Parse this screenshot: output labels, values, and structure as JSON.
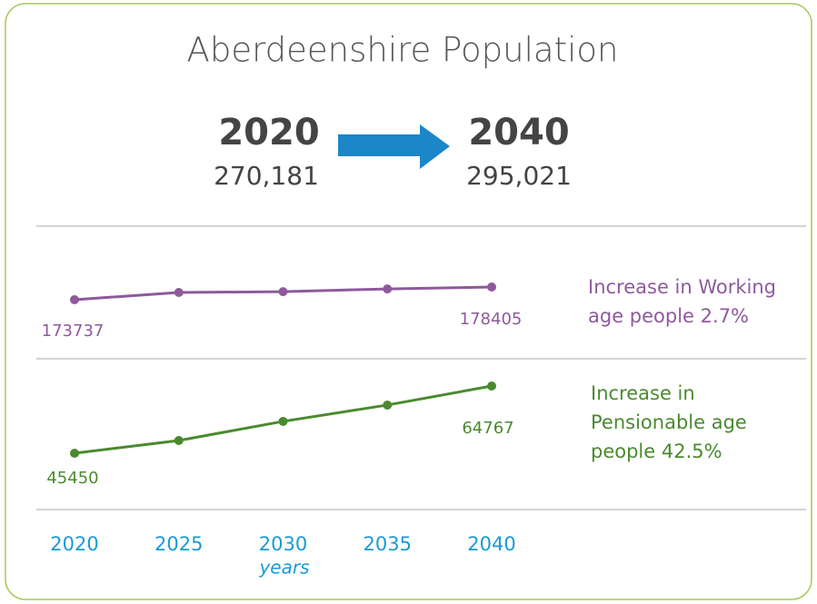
{
  "title": "Aberdeenshire Population",
  "comparison": {
    "from": {
      "year": "2020",
      "value": "270,181"
    },
    "to": {
      "year": "2040",
      "value": "295,021"
    }
  },
  "chart_data": {
    "type": "line",
    "categories": [
      "2020",
      "2025",
      "2030",
      "2035",
      "2040"
    ],
    "xlabel": "years",
    "series": [
      {
        "name": "Increase in Working age people 2.7%",
        "color": "#8e5a9b",
        "values": [
          173737,
          176400,
          176700,
          177700,
          178405
        ]
      },
      {
        "name": "Increase in Pensionable age people 42.5%",
        "color": "#4a8a2e",
        "values": [
          45450,
          49100,
          54600,
          59300,
          64767
        ]
      }
    ]
  }
}
